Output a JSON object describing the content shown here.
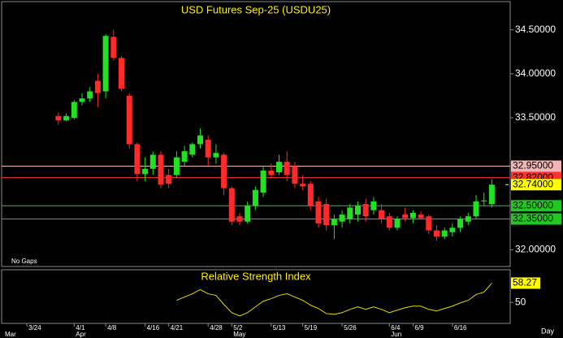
{
  "chart_data": [
    {
      "type": "candlestick",
      "title": "USD Futures Sep-25 (USDU25)",
      "annotation": "No Gaps",
      "period": "Day",
      "categories": [
        null,
        null,
        null,
        "3/24",
        null,
        null,
        null,
        null,
        null,
        "4/1",
        null,
        null,
        null,
        "4/8",
        null,
        null,
        null,
        null,
        "4/16",
        null,
        null,
        "4/21",
        null,
        null,
        null,
        null,
        "4/28",
        null,
        null,
        "5/2",
        null,
        null,
        null,
        null,
        "5/13",
        null,
        null,
        null,
        "5/19",
        null,
        null,
        null,
        null,
        "5/26",
        null,
        null,
        null,
        null,
        null,
        "6/4",
        null,
        null,
        "6/9",
        null,
        null,
        null,
        null,
        "6/16",
        null,
        null,
        null,
        null,
        null,
        null
      ],
      "month_labels": [
        "Mar",
        null,
        null,
        null,
        null,
        null,
        null,
        null,
        null,
        "Apr",
        null,
        null,
        null,
        null,
        null,
        null,
        null,
        null,
        null,
        null,
        null,
        null,
        null,
        null,
        null,
        null,
        null,
        null,
        null,
        "May",
        null,
        null,
        null,
        null,
        null,
        null,
        null,
        null,
        null,
        null,
        null,
        null,
        null,
        null,
        null,
        null,
        null,
        null,
        null,
        "Jun",
        null,
        null,
        null,
        null,
        null,
        null,
        null,
        null,
        null,
        null,
        null,
        null,
        null,
        null
      ],
      "open": [
        null,
        null,
        null,
        null,
        null,
        null,
        null,
        33.52,
        33.47,
        33.5,
        33.68,
        33.72,
        33.92,
        33.8,
        34.42,
        34.18,
        33.75,
        33.2,
        32.86,
        32.92,
        33.08,
        32.85,
        32.85,
        33.0,
        33.08,
        33.2,
        33.25,
        33.05,
        33.08,
        32.7,
        32.38,
        32.32,
        32.5,
        32.65,
        32.9,
        32.88,
        33.0,
        32.95,
        32.75,
        32.75,
        32.55,
        32.52,
        32.28,
        32.32,
        32.35,
        32.4,
        32.52,
        32.45,
        32.45,
        32.38,
        32.25,
        32.4,
        32.36,
        32.4,
        32.38,
        32.22,
        32.15,
        32.2,
        32.25,
        32.32,
        32.38,
        32.55,
        32.52,
        null
      ],
      "high": [
        null,
        null,
        null,
        null,
        null,
        null,
        null,
        33.56,
        33.55,
        33.7,
        33.78,
        33.85,
        34.0,
        34.45,
        34.5,
        34.2,
        33.78,
        33.22,
        33.05,
        33.12,
        33.12,
        32.92,
        33.12,
        33.18,
        33.22,
        33.38,
        33.3,
        33.2,
        33.1,
        32.72,
        32.42,
        32.55,
        32.72,
        32.95,
        32.98,
        33.08,
        33.12,
        33.0,
        32.85,
        32.78,
        32.6,
        32.58,
        32.4,
        32.45,
        32.52,
        32.55,
        32.58,
        32.6,
        32.52,
        32.42,
        32.38,
        32.48,
        32.45,
        32.44,
        32.4,
        32.28,
        32.25,
        32.3,
        32.38,
        32.42,
        32.62,
        32.65,
        32.8,
        null
      ],
      "low": [
        null,
        null,
        null,
        null,
        null,
        null,
        null,
        33.42,
        33.46,
        33.48,
        33.64,
        33.68,
        33.62,
        33.72,
        34.15,
        33.8,
        33.15,
        32.78,
        32.78,
        32.85,
        32.7,
        32.7,
        32.82,
        32.95,
        33.05,
        33.15,
        32.95,
        32.98,
        32.62,
        32.28,
        32.28,
        32.3,
        32.45,
        32.6,
        32.82,
        32.85,
        32.78,
        32.7,
        32.68,
        32.45,
        32.25,
        32.22,
        32.12,
        32.25,
        32.3,
        32.32,
        32.32,
        32.4,
        32.3,
        32.22,
        32.22,
        32.32,
        32.3,
        32.35,
        32.18,
        32.1,
        32.12,
        32.15,
        32.2,
        32.28,
        32.35,
        32.5,
        32.48,
        null
      ],
      "close": [
        null,
        null,
        null,
        null,
        null,
        null,
        null,
        33.47,
        33.52,
        33.68,
        33.72,
        33.8,
        33.78,
        34.43,
        34.18,
        33.83,
        33.2,
        32.86,
        32.92,
        33.08,
        32.74,
        32.75,
        33.05,
        33.12,
        33.2,
        33.3,
        33.05,
        33.1,
        32.7,
        32.32,
        32.32,
        32.5,
        32.68,
        32.9,
        32.85,
        33.0,
        32.85,
        32.75,
        32.72,
        32.5,
        32.3,
        32.28,
        32.35,
        32.4,
        32.48,
        32.5,
        32.38,
        32.55,
        32.35,
        32.25,
        32.35,
        32.36,
        32.42,
        32.36,
        32.22,
        32.15,
        32.22,
        32.25,
        32.35,
        32.38,
        32.55,
        32.56,
        32.74,
        null
      ],
      "up_color": "#22e022",
      "down_color": "#ff2a2a",
      "ylim": [
        31.81,
        34.82
      ],
      "yticks": [
        {
          "value": 34.5,
          "label": "34.50000"
        },
        {
          "value": 34,
          "label": "34.00000"
        },
        {
          "value": 33.5,
          "label": "33.50000"
        },
        {
          "value": 32,
          "label": "32.00000"
        }
      ],
      "levels": [
        {
          "value": 32.95,
          "label": "32.95000",
          "color": "#f2b4b4"
        },
        {
          "value": 32.82,
          "label": "32.82000",
          "color": "#ff3030"
        },
        {
          "value": 32.5,
          "label": "32.50000",
          "color": "#22c822"
        },
        {
          "value": 32.35,
          "label": "32.35000",
          "color": "#22c822"
        }
      ],
      "last": {
        "value": 32.74,
        "label": "32.74000",
        "color": "#ffff00"
      }
    },
    {
      "type": "line",
      "title": "Relative Strength Index",
      "color": "#e8d800",
      "values": [
        null,
        null,
        null,
        null,
        null,
        null,
        null,
        null,
        null,
        null,
        null,
        null,
        null,
        null,
        null,
        null,
        null,
        null,
        null,
        null,
        null,
        null,
        50.9,
        52.3,
        53.7,
        55.5,
        53.7,
        53.0,
        49.1,
        45.6,
        44.2,
        45.6,
        48.1,
        50.5,
        51.6,
        53.0,
        53.7,
        52.3,
        50.9,
        48.8,
        47.4,
        45.2,
        44.9,
        45.6,
        47.0,
        48.1,
        47.0,
        48.1,
        47.0,
        45.6,
        46.7,
        47.7,
        48.4,
        48.4,
        47.0,
        46.3,
        47.4,
        48.4,
        49.8,
        50.9,
        53.4,
        54.4,
        58.27,
        null
      ],
      "ylim": [
        41,
        64
      ],
      "yticks": [
        50
      ]
    }
  ]
}
